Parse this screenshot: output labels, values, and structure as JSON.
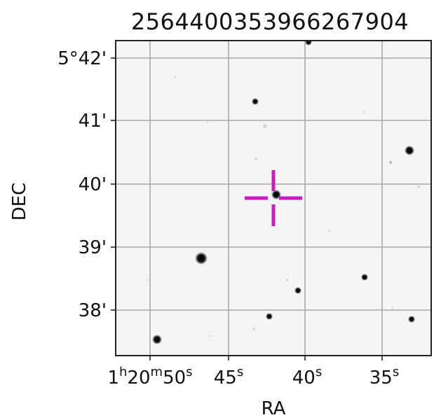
{
  "title": "2564400353966267904",
  "axes": {
    "xlabel": "RA",
    "ylabel": "DEC",
    "x_ticks": [
      {
        "label": "1h20m50s",
        "base": "1",
        "sup1": "h",
        "mid": "20",
        "sup2": "m",
        "num": "50",
        "sup3": "s"
      },
      {
        "label": "45s",
        "num": "45",
        "sup": "s"
      },
      {
        "label": "40s",
        "num": "40",
        "sup": "s"
      },
      {
        "label": "35s",
        "num": "35",
        "sup": "s"
      }
    ],
    "y_ticks": [
      "5°42'",
      "41'",
      "40'",
      "39'",
      "38'"
    ],
    "grid": true
  },
  "image": {
    "colormap": "inverted grayscale",
    "marker_color": "#c71fbf",
    "marker": "crosshair"
  }
}
